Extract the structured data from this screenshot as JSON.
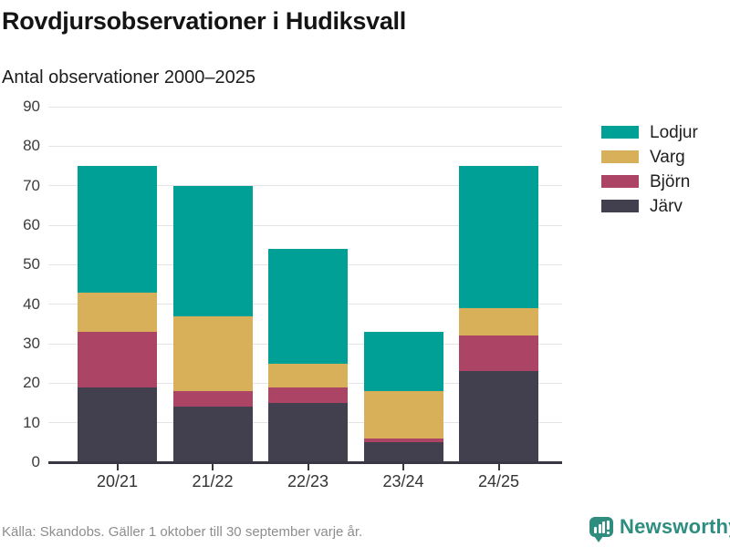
{
  "header": {
    "title": "Rovdjursobservationer i Hudiksvall",
    "subtitle": "Antal observationer 2000–2025"
  },
  "chart_data": {
    "type": "bar",
    "stacked": true,
    "title": "Rovdjursobservationer i Hudiksvall",
    "subtitle": "Antal observationer 2000–2025",
    "categories": [
      "20/21",
      "21/22",
      "22/23",
      "23/24",
      "24/25"
    ],
    "series": [
      {
        "name": "Järv",
        "color": "#42404f",
        "values": [
          19,
          14,
          15,
          5,
          23
        ]
      },
      {
        "name": "Björn",
        "color": "#ac4565",
        "values": [
          14,
          4,
          4,
          1,
          9
        ]
      },
      {
        "name": "Varg",
        "color": "#d9b05a",
        "values": [
          10,
          19,
          6,
          12,
          7
        ]
      },
      {
        "name": "Lodjur",
        "color": "#00a096",
        "values": [
          32,
          33,
          29,
          15,
          36
        ]
      }
    ],
    "totals": [
      75,
      70,
      54,
      33,
      75
    ],
    "xlabel": "",
    "ylabel": "",
    "ylim": [
      0,
      90
    ],
    "ytick_step": 10,
    "yticks": [
      0,
      10,
      20,
      30,
      40,
      50,
      60,
      70,
      80,
      90
    ],
    "grid": true,
    "grid_color": "#e4e4e4",
    "axis_color": "#3a3745",
    "legend_position": "right",
    "legend_order": [
      "Lodjur",
      "Varg",
      "Björn",
      "Järv"
    ]
  },
  "footer": {
    "source": "Källa: Skandobs. Gäller 1 oktober till 30 september varje år.",
    "brand": "Newsworthy",
    "brand_color": "#2f8d80"
  }
}
